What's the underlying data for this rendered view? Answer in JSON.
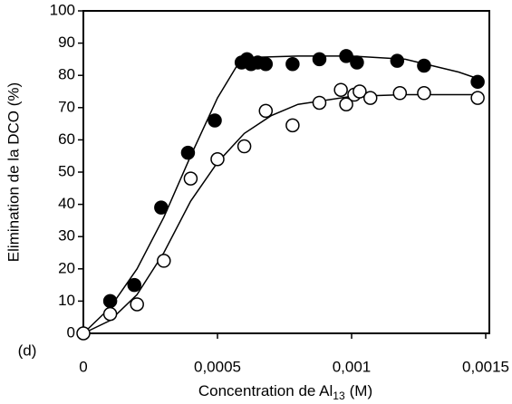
{
  "chart_data": {
    "type": "scatter",
    "ylabel": "Elimination de la DCO (%)",
    "xlabel": "Concentration de Al",
    "xlabel_subscript": "13",
    "xlabel_suffix": "(M)",
    "annotation": "(d)",
    "xlim": [
      0,
      0.0015
    ],
    "ylim": [
      0,
      100
    ],
    "xticks": [
      0,
      {
        "value": 0.0005,
        "label": "0,0005"
      },
      {
        "value": 0.001,
        "label": "0,001"
      },
      {
        "value": 0.0015,
        "label": "0,0015"
      }
    ],
    "yticks": [
      0,
      10,
      20,
      30,
      40,
      50,
      60,
      70,
      80,
      90,
      100
    ],
    "series": [
      {
        "style": "line",
        "color": "#000000",
        "x": [
          0,
          0.0001,
          0.0002,
          0.0003,
          0.0004,
          0.0005,
          0.00058,
          0.0006,
          0.0008,
          0.001,
          0.0012,
          0.0014,
          0.00147
        ],
        "values": [
          0,
          8,
          20,
          36,
          55,
          73,
          84,
          85.5,
          86,
          86,
          85,
          81,
          79
        ]
      },
      {
        "style": "line",
        "color": "#000000",
        "x": [
          0,
          0.0001,
          0.0002,
          0.0003,
          0.0004,
          0.0005,
          0.0006,
          0.0007,
          0.0008,
          0.001,
          0.0012,
          0.00147
        ],
        "values": [
          0,
          4,
          12,
          25,
          41,
          53,
          62,
          67.5,
          71,
          73.5,
          74,
          74
        ]
      },
      {
        "style": "filled",
        "color": "#000000",
        "x": [
          0.0001,
          0.00019,
          0.00029,
          0.00039,
          0.00049,
          0.00059,
          0.00061,
          0.000625,
          0.00065,
          0.00068,
          0.00078,
          0.00088,
          0.00098,
          0.00102,
          0.00117,
          0.00127,
          0.00147
        ],
        "values": [
          10,
          15,
          39,
          56,
          66,
          84,
          85,
          83.5,
          84,
          83.5,
          83.5,
          85,
          86,
          84,
          84.5,
          83,
          78
        ]
      },
      {
        "style": "open",
        "color": "#000000",
        "x": [
          0,
          0.0001,
          0.0002,
          0.0003,
          0.0004,
          0.0005,
          0.0006,
          0.00068,
          0.00078,
          0.00088,
          0.00096,
          0.00098,
          0.00101,
          0.00103,
          0.00107,
          0.00118,
          0.00127,
          0.00147
        ],
        "values": [
          0,
          6,
          9,
          22.5,
          48,
          54,
          58,
          69,
          64.5,
          71.5,
          75.5,
          71,
          74,
          75,
          73,
          74.5,
          74.5,
          73
        ]
      }
    ]
  }
}
